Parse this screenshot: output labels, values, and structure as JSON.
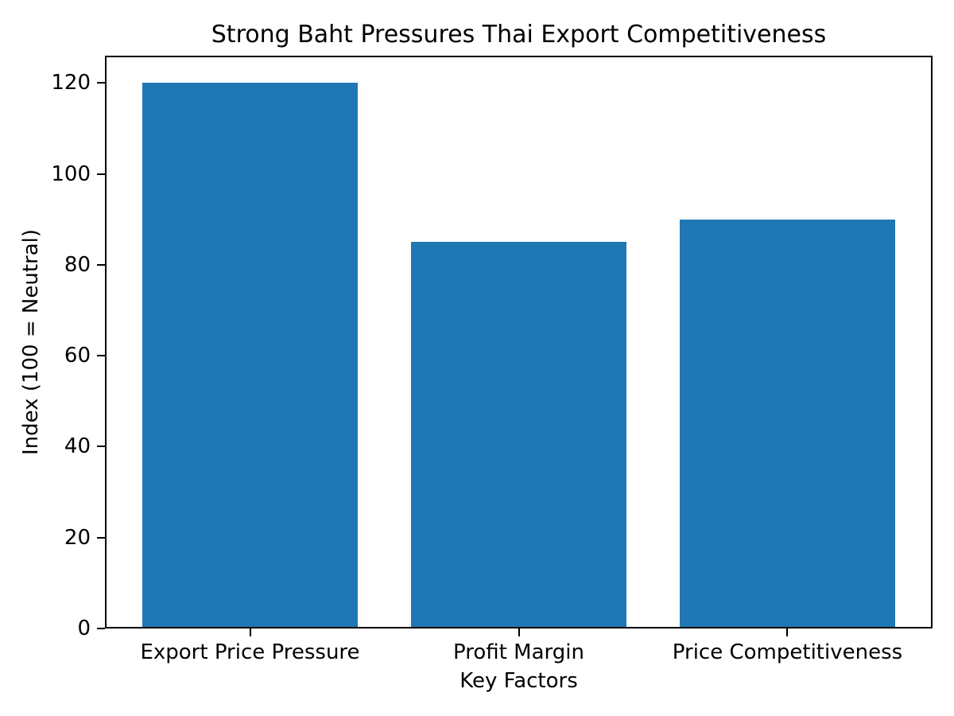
{
  "chart_data": {
    "type": "bar",
    "title": "Strong Baht Pressures Thai Export Competitiveness",
    "xlabel": "Key Factors",
    "ylabel": "Index (100 = Neutral)",
    "categories": [
      "Export Price Pressure",
      "Profit Margin",
      "Price Competitiveness"
    ],
    "values": [
      120,
      85,
      90
    ],
    "yticks": [
      0,
      20,
      40,
      60,
      80,
      100,
      120
    ],
    "ylim": [
      0,
      126
    ],
    "grid": false,
    "legend": false,
    "bar_color": "#1f77b4",
    "axis_color": "#000000",
    "text_color": "#000000",
    "background_color": "#ffffff"
  }
}
